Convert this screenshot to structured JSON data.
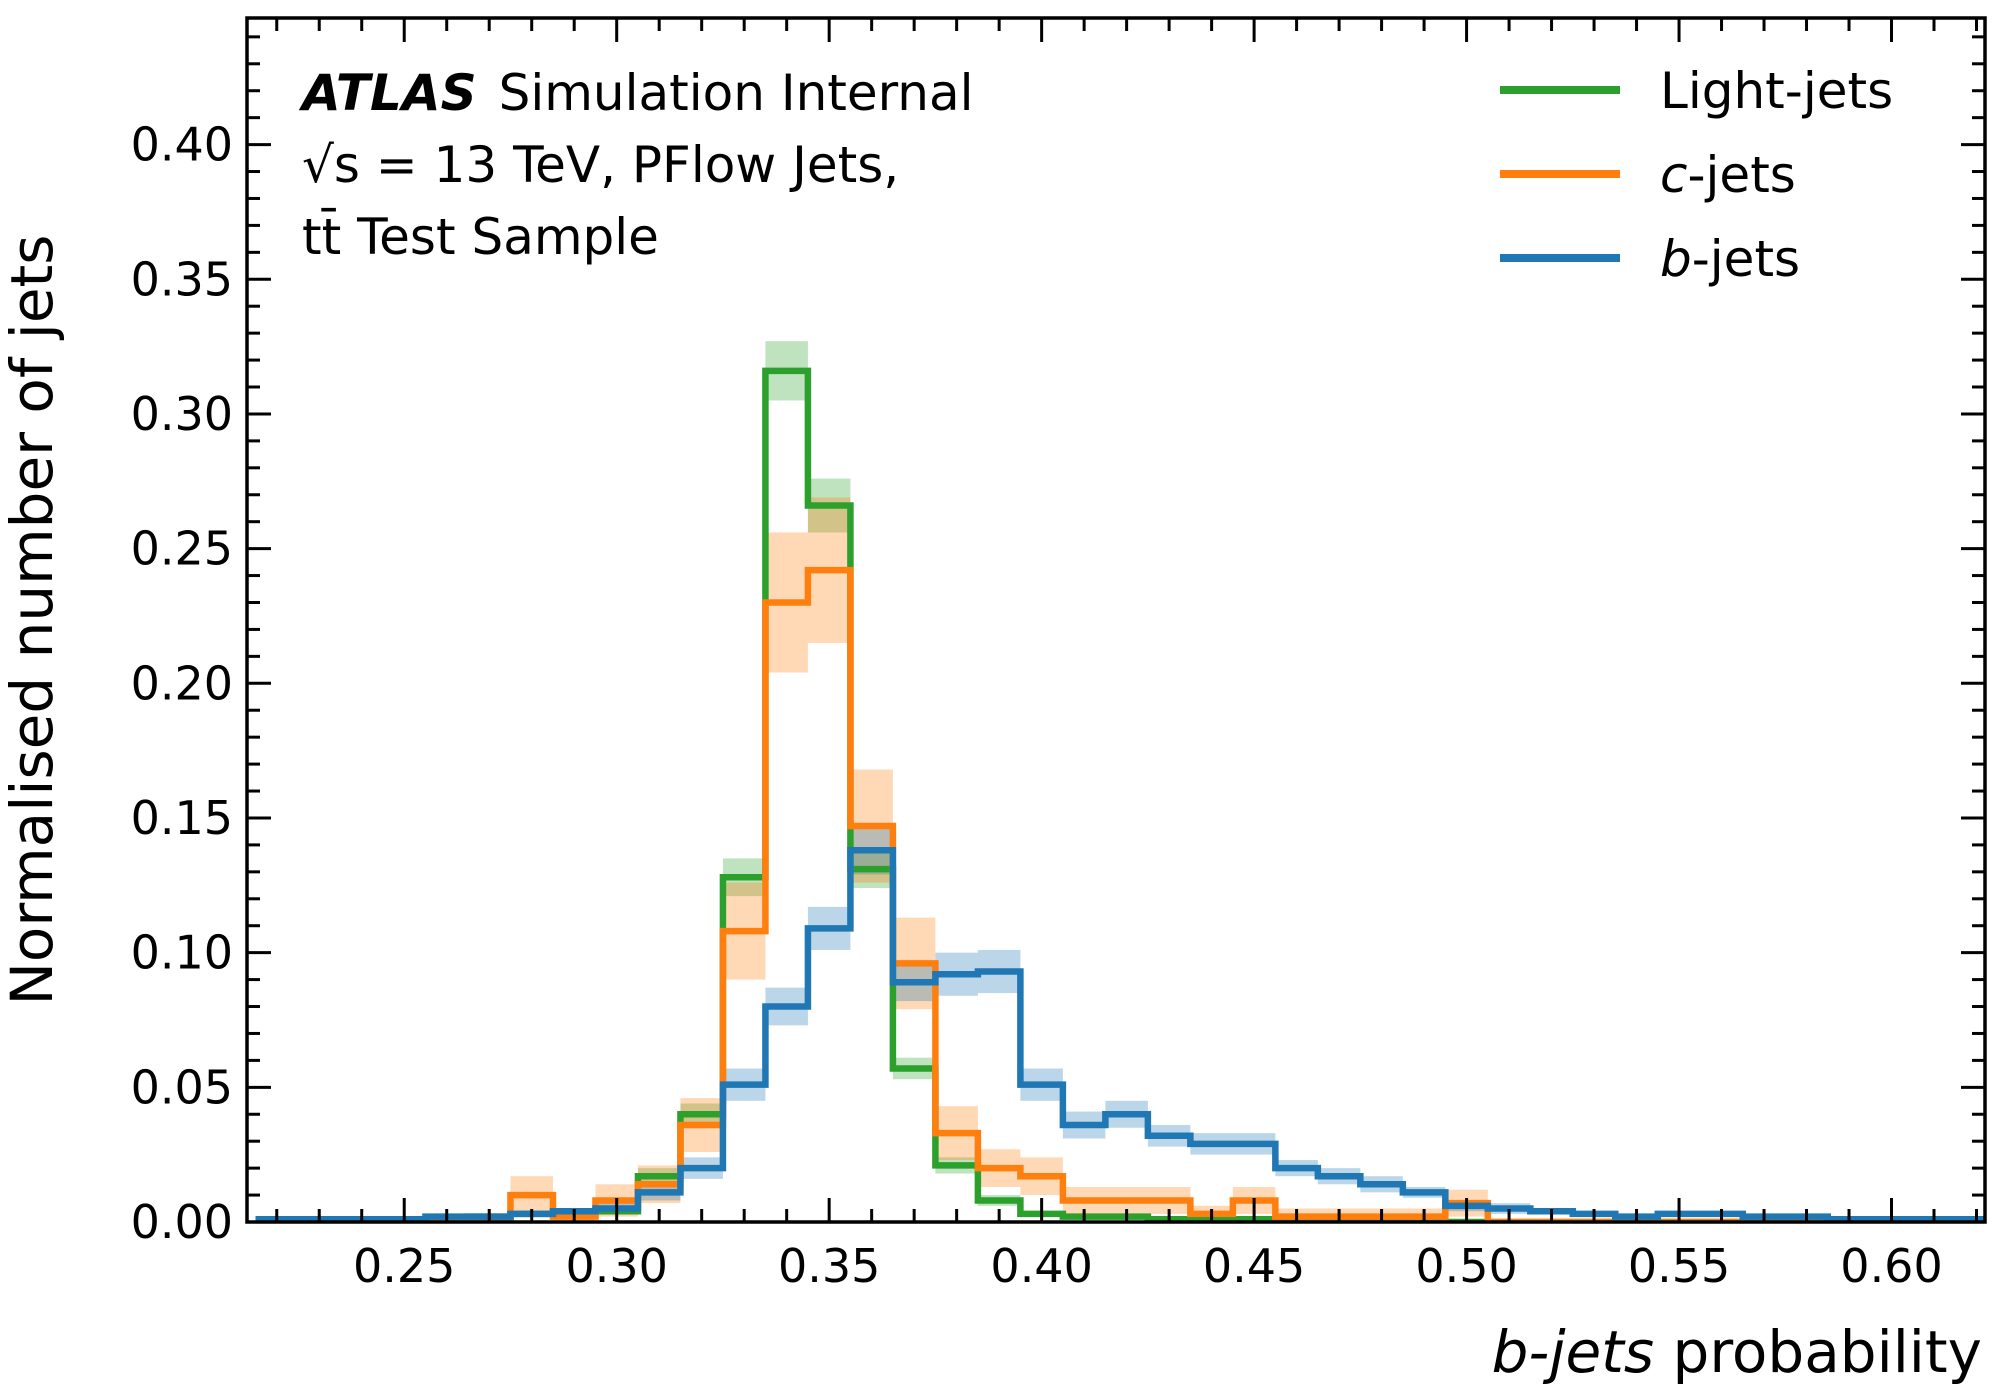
{
  "chart_data": {
    "type": "line",
    "title": "",
    "xlabel": "b-jets probability",
    "ylabel": "Normalised number of jets",
    "xlim": [
      0.213,
      0.622
    ],
    "ylim": [
      0.0,
      0.447
    ],
    "x_ticks": [
      "0.25",
      "0.30",
      "0.35",
      "0.40",
      "0.45",
      "0.50",
      "0.55",
      "0.60"
    ],
    "y_ticks": [
      "0.00",
      "0.05",
      "0.10",
      "0.15",
      "0.20",
      "0.25",
      "0.30",
      "0.35",
      "0.40"
    ],
    "bin_edges": [
      0.215,
      0.225,
      0.235,
      0.245,
      0.255,
      0.265,
      0.275,
      0.285,
      0.295,
      0.305,
      0.315,
      0.325,
      0.335,
      0.345,
      0.355,
      0.365,
      0.375,
      0.385,
      0.395,
      0.405,
      0.415,
      0.425,
      0.435,
      0.445,
      0.455,
      0.465,
      0.475,
      0.485,
      0.495,
      0.505,
      0.515,
      0.525,
      0.535,
      0.545,
      0.555,
      0.565,
      0.575,
      0.585,
      0.595,
      0.605,
      0.615,
      0.625
    ],
    "annotations": {
      "experiment": "ATLAS",
      "status": "Simulation Internal",
      "line2": "√s = 13 TeV, PFlow Jets,",
      "line3": "tt̄ Test Sample"
    },
    "legend_position": "upper right",
    "series": [
      {
        "name": "Light-jets",
        "color": "#2ca02c",
        "values": [
          0,
          0,
          0,
          0,
          0.001,
          0.002,
          0.003,
          0.003,
          0.004,
          0.017,
          0.04,
          0.128,
          0.316,
          0.266,
          0.131,
          0.057,
          0.021,
          0.008,
          0.003,
          0.002,
          0.002,
          0.001,
          0.001,
          0.001,
          0,
          0,
          0,
          0,
          0,
          0,
          0,
          0,
          0,
          0,
          0,
          0,
          0,
          0,
          0,
          0,
          0
        ],
        "uncertainty": [
          0,
          0,
          0,
          0,
          0.001,
          0.001,
          0.001,
          0.001,
          0.001,
          0.003,
          0.004,
          0.007,
          0.011,
          0.01,
          0.007,
          0.004,
          0.003,
          0.002,
          0.001,
          0.001,
          0.001,
          0.001,
          0.001,
          0.001,
          0,
          0,
          0,
          0,
          0,
          0,
          0,
          0,
          0,
          0,
          0,
          0,
          0,
          0,
          0,
          0,
          0
        ]
      },
      {
        "name": "c-jets",
        "color": "#ff7f0e",
        "values": [
          0,
          0,
          0,
          0,
          0,
          0,
          0.01,
          0.002,
          0.008,
          0.014,
          0.036,
          0.108,
          0.23,
          0.242,
          0.147,
          0.096,
          0.033,
          0.02,
          0.017,
          0.008,
          0.008,
          0.008,
          0.003,
          0.008,
          0.002,
          0.002,
          0.002,
          0.002,
          0.007,
          0,
          0,
          0,
          0,
          0,
          0,
          0,
          0,
          0,
          0,
          0,
          0
        ],
        "uncertainty": [
          0,
          0,
          0,
          0,
          0,
          0,
          0.007,
          0.003,
          0.006,
          0.007,
          0.01,
          0.018,
          0.026,
          0.027,
          0.021,
          0.017,
          0.01,
          0.007,
          0.007,
          0.005,
          0.005,
          0.005,
          0.003,
          0.005,
          0.003,
          0.003,
          0.003,
          0.003,
          0.005,
          0,
          0,
          0,
          0,
          0,
          0,
          0,
          0,
          0,
          0,
          0,
          0
        ]
      },
      {
        "name": "b-jets",
        "color": "#1f77b4",
        "values": [
          0.001,
          0.001,
          0.001,
          0.001,
          0.002,
          0.002,
          0.003,
          0.004,
          0.005,
          0.011,
          0.02,
          0.051,
          0.08,
          0.109,
          0.138,
          0.089,
          0.092,
          0.093,
          0.051,
          0.036,
          0.04,
          0.032,
          0.029,
          0.029,
          0.02,
          0.017,
          0.014,
          0.011,
          0.006,
          0.005,
          0.004,
          0.003,
          0.002,
          0.003,
          0.003,
          0.002,
          0.002,
          0.001,
          0.001,
          0.001,
          0.001
        ],
        "uncertainty": [
          0.001,
          0.001,
          0.001,
          0.001,
          0.001,
          0.001,
          0.001,
          0.001,
          0.002,
          0.003,
          0.004,
          0.006,
          0.007,
          0.008,
          0.009,
          0.007,
          0.008,
          0.008,
          0.006,
          0.005,
          0.005,
          0.004,
          0.004,
          0.004,
          0.003,
          0.003,
          0.003,
          0.002,
          0.002,
          0.002,
          0.001,
          0.001,
          0.001,
          0.001,
          0.001,
          0.001,
          0.001,
          0.001,
          0.001,
          0.001,
          0.001
        ]
      }
    ]
  }
}
